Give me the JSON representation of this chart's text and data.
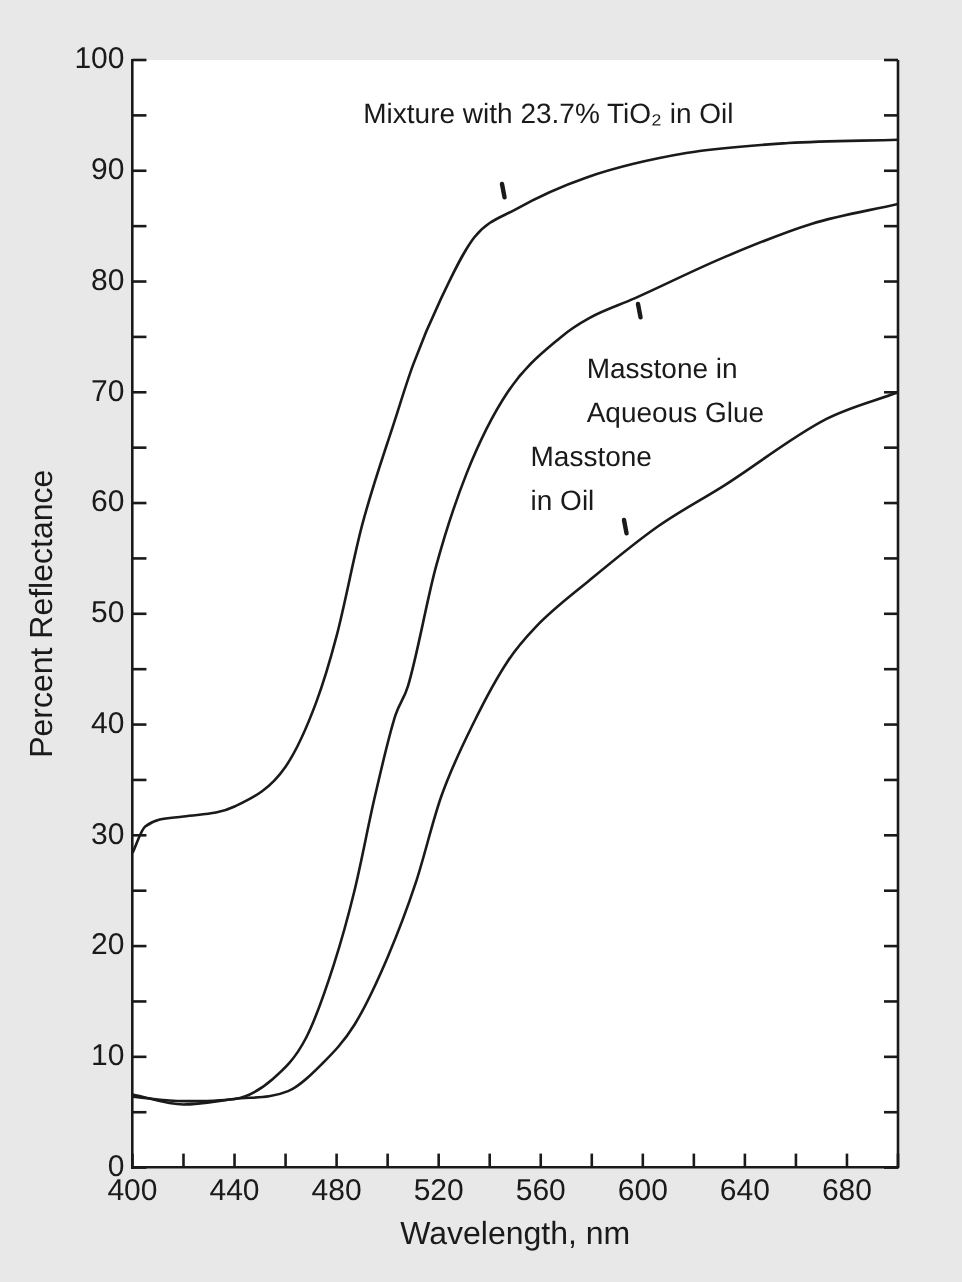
{
  "chart_data": {
    "type": "line",
    "xlabel": "Wavelength, nm",
    "ylabel": "Percent Reflectance",
    "xlim": [
      400,
      700
    ],
    "ylim": [
      0,
      100
    ],
    "xticks": [
      400,
      {
        "value": 420,
        "label": null
      },
      440,
      {
        "value": 460,
        "label": null
      },
      480,
      {
        "value": 500,
        "label": null
      },
      520,
      {
        "value": 540,
        "label": null
      },
      560,
      {
        "value": 580,
        "label": null
      },
      600,
      {
        "value": 620,
        "label": null
      },
      640,
      {
        "value": 660,
        "label": null
      },
      680,
      {
        "value": 700,
        "label": null
      }
    ],
    "yticks": [
      0,
      {
        "value": 5,
        "label": null
      },
      10,
      {
        "value": 15,
        "label": null
      },
      20,
      {
        "value": 25,
        "label": null
      },
      30,
      {
        "value": 35,
        "label": null
      },
      40,
      {
        "value": 45,
        "label": null
      },
      50,
      {
        "value": 55,
        "label": null
      },
      60,
      {
        "value": 65,
        "label": null
      },
      70,
      {
        "value": 75,
        "label": null
      },
      80,
      {
        "value": 85,
        "label": null
      },
      90,
      {
        "value": 95,
        "label": null
      },
      100
    ],
    "grid": false,
    "legend": false,
    "marker": "none",
    "line_style": "solid",
    "series": [
      {
        "name": "Mixture with 23.7% TiO₂ in Oil",
        "color": "#1a1a1a",
        "x": [
          400,
          405,
          420,
          440,
          460,
          472,
          480,
          490,
          503,
          510,
          521,
          534,
          550,
          578,
          617,
          657,
          700
        ],
        "values": [
          28.4,
          30.8,
          31.7,
          32.6,
          36.2,
          42,
          48,
          58,
          67.6,
          72.5,
          78.5,
          84,
          86.5,
          89.4,
          91.6,
          92.5,
          92.8
        ]
      },
      {
        "name": "Masstone in Aqueous Glue",
        "color": "#1a1a1a",
        "x": [
          400,
          420,
          440,
          455,
          468,
          479,
          487,
          495,
          503,
          508,
          519,
          531,
          547,
          568,
          579,
          597,
          632,
          666,
          700
        ],
        "values": [
          6.4,
          6.0,
          6.2,
          8,
          11.7,
          18.4,
          25,
          33.5,
          40.8,
          43.5,
          54.3,
          62.7,
          70,
          75,
          76.7,
          78.5,
          82.2,
          85.2,
          87
        ]
      },
      {
        "name": "Masstone in Oil",
        "color": "#1a1a1a",
        "x": [
          400,
          420,
          440,
          461,
          474,
          487,
          500,
          511,
          521,
          534,
          547,
          558,
          579,
          606,
          632,
          672,
          700
        ],
        "values": [
          6.6,
          5.7,
          6.2,
          6.9,
          9.3,
          12.9,
          19,
          25.7,
          33.5,
          40.3,
          45.7,
          48.8,
          53,
          57.9,
          61.6,
          67.6,
          70
        ]
      }
    ]
  }
}
